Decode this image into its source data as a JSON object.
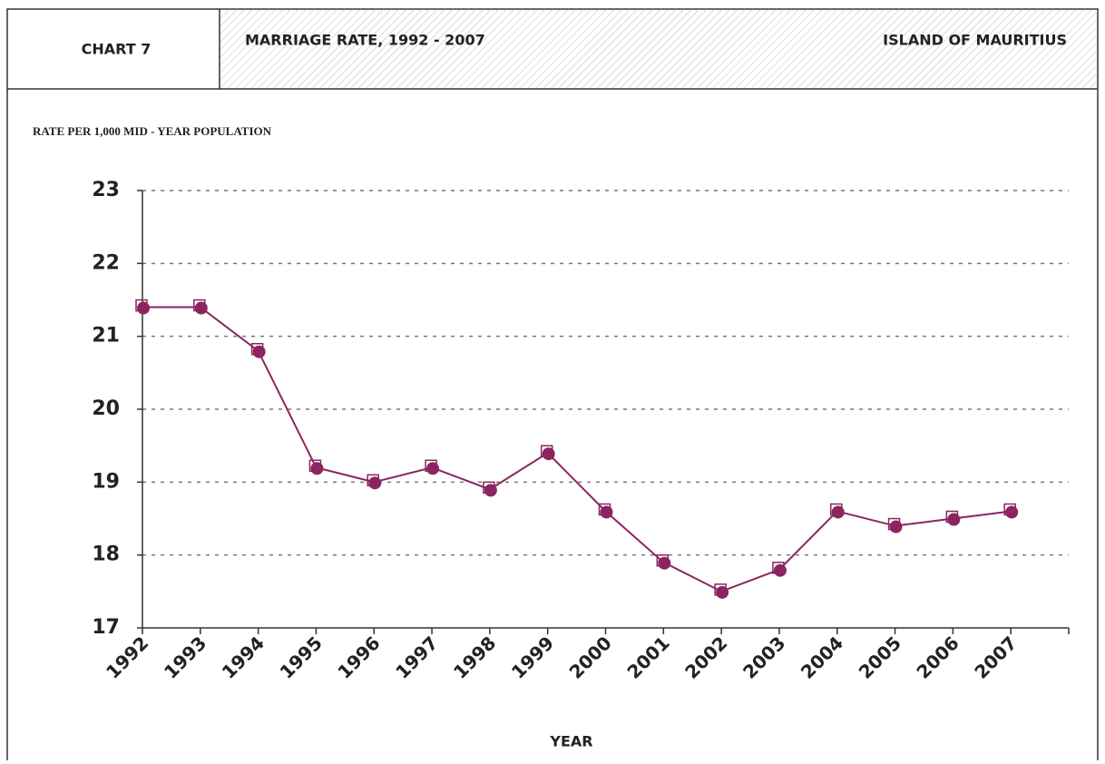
{
  "chart_data": {
    "type": "line",
    "chart_label": "CHART 7",
    "title": "MARRIAGE RATE, 1992 - 2007",
    "region": "ISLAND OF MAURITIUS",
    "y_label": "RATE PER 1,000 MID - YEAR POPULATION",
    "x_label": "YEAR",
    "categories": [
      "1992",
      "1993",
      "1994",
      "1995",
      "1996",
      "1997",
      "1998",
      "1999",
      "2000",
      "2001",
      "2002",
      "2003",
      "2004",
      "2005",
      "2006",
      "2007"
    ],
    "series": [
      {
        "name": "Marriage rate",
        "color": "#8b2560",
        "values": [
          21.4,
          21.4,
          20.8,
          19.2,
          19.0,
          19.2,
          18.9,
          19.4,
          18.6,
          17.9,
          17.5,
          17.8,
          18.6,
          18.4,
          18.5,
          18.6
        ]
      }
    ],
    "ylim": [
      17,
      23
    ],
    "yticks": [
      17,
      18,
      19,
      20,
      21,
      22,
      23
    ],
    "grid": true
  }
}
